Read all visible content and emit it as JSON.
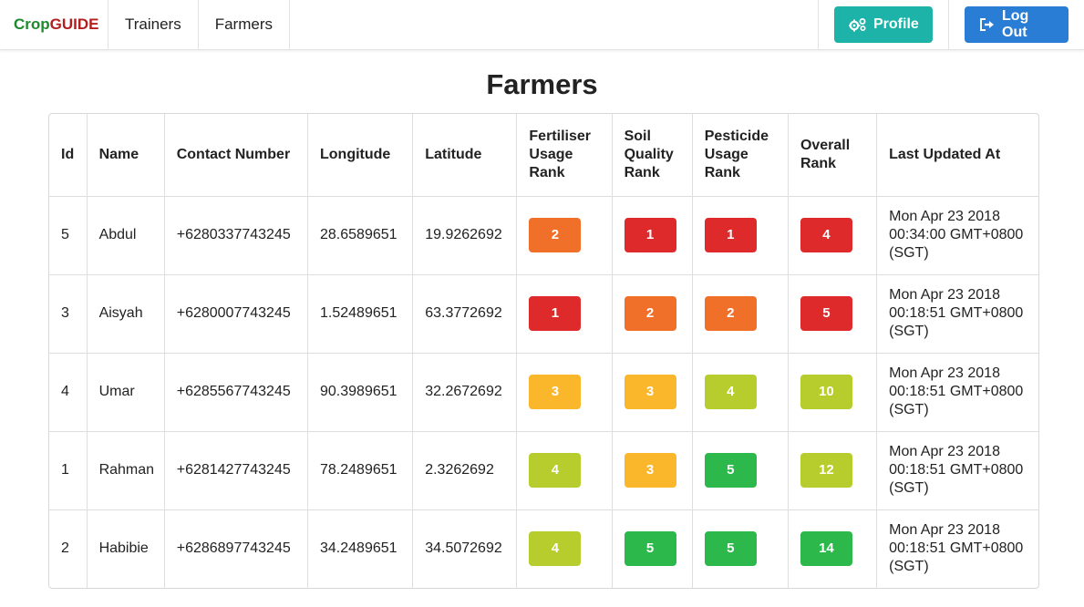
{
  "nav": {
    "brand_crop": "Crop",
    "brand_guide": "GUIDE",
    "links": [
      "Trainers",
      "Farmers"
    ],
    "profile_label": "Profile",
    "logout_label": "Log Out",
    "profile_icon": "gears-icon",
    "logout_icon": "sign-out-icon"
  },
  "page": {
    "title": "Farmers"
  },
  "colors": {
    "rank_1_2_red": "#de2a2a",
    "orange": "#f0702a",
    "yellow": "#fbb72c",
    "lime": "#b7cd2d",
    "green": "#2db84b",
    "profile_button": "#1db3a8",
    "logout_button": "#2a7dd4"
  },
  "table": {
    "headers": {
      "id": "Id",
      "name": "Name",
      "contact": "Contact Number",
      "longitude": "Longitude",
      "latitude": "Latitude",
      "fertiliser": "Fertiliser Usage Rank",
      "soil": "Soil Quality Rank",
      "pesticide": "Pesticide Usage Rank",
      "overall": "Overall Rank",
      "updated": "Last Updated At"
    },
    "rows": [
      {
        "id": "5",
        "name": "Abdul",
        "contact": "+6280337743245",
        "longitude": "28.6589651",
        "latitude": "19.9262692",
        "fertiliser": {
          "value": "2",
          "color": "orange"
        },
        "soil": {
          "value": "1",
          "color": "red"
        },
        "pesticide": {
          "value": "1",
          "color": "red"
        },
        "overall": {
          "value": "4",
          "color": "red"
        },
        "updated": "Mon Apr 23 2018 00:34:00 GMT+0800 (SGT)"
      },
      {
        "id": "3",
        "name": "Aisyah",
        "contact": "+6280007743245",
        "longitude": "1.52489651",
        "latitude": "63.3772692",
        "fertiliser": {
          "value": "1",
          "color": "red"
        },
        "soil": {
          "value": "2",
          "color": "orange"
        },
        "pesticide": {
          "value": "2",
          "color": "orange"
        },
        "overall": {
          "value": "5",
          "color": "red"
        },
        "updated": "Mon Apr 23 2018 00:18:51 GMT+0800 (SGT)"
      },
      {
        "id": "4",
        "name": "Umar",
        "contact": "+6285567743245",
        "longitude": "90.3989651",
        "latitude": "32.2672692",
        "fertiliser": {
          "value": "3",
          "color": "yellow"
        },
        "soil": {
          "value": "3",
          "color": "yellow"
        },
        "pesticide": {
          "value": "4",
          "color": "lime"
        },
        "overall": {
          "value": "10",
          "color": "lime"
        },
        "updated": "Mon Apr 23 2018 00:18:51 GMT+0800 (SGT)"
      },
      {
        "id": "1",
        "name": "Rahman",
        "contact": "+6281427743245",
        "longitude": "78.2489651",
        "latitude": "2.3262692",
        "fertiliser": {
          "value": "4",
          "color": "lime"
        },
        "soil": {
          "value": "3",
          "color": "yellow"
        },
        "pesticide": {
          "value": "5",
          "color": "green"
        },
        "overall": {
          "value": "12",
          "color": "lime"
        },
        "updated": "Mon Apr 23 2018 00:18:51 GMT+0800 (SGT)"
      },
      {
        "id": "2",
        "name": "Habibie",
        "contact": "+6286897743245",
        "longitude": "34.2489651",
        "latitude": "34.5072692",
        "fertiliser": {
          "value": "4",
          "color": "lime"
        },
        "soil": {
          "value": "5",
          "color": "green"
        },
        "pesticide": {
          "value": "5",
          "color": "green"
        },
        "overall": {
          "value": "14",
          "color": "green"
        },
        "updated": "Mon Apr 23 2018 00:18:51 GMT+0800 (SGT)"
      }
    ]
  }
}
